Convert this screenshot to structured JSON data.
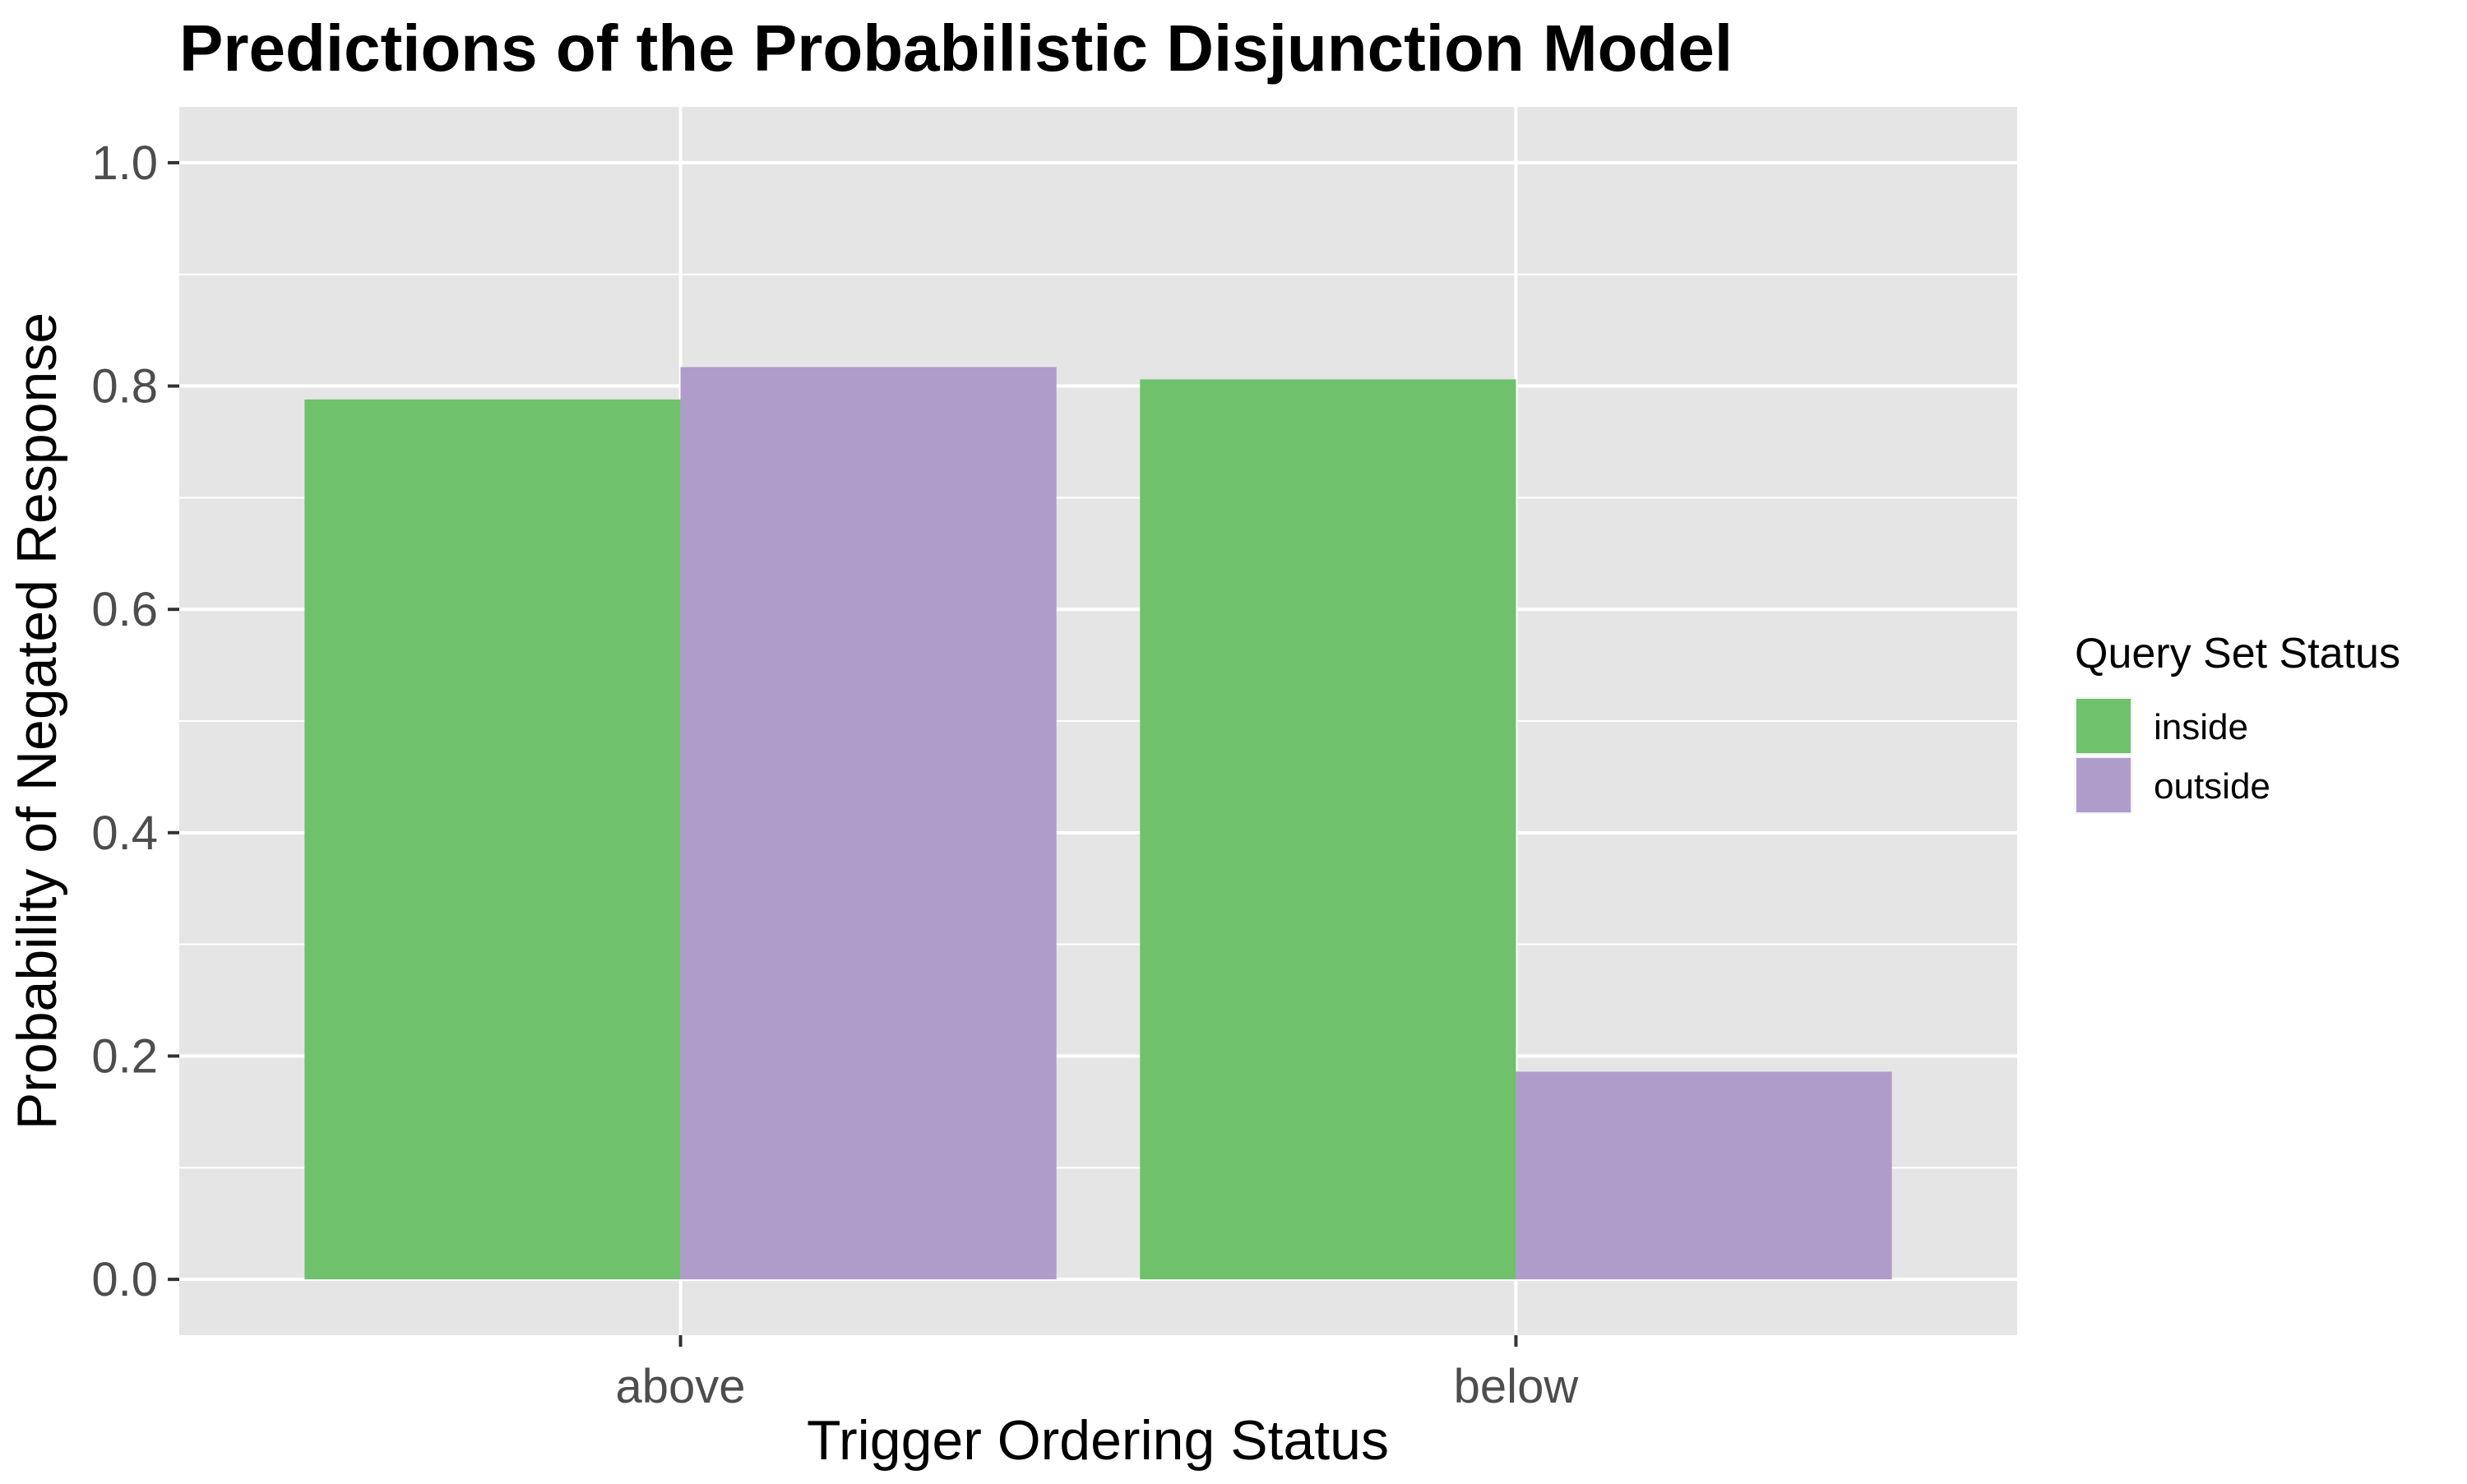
{
  "chart_data": {
    "type": "bar",
    "title": "Predictions of the Probabilistic Disjunction Model",
    "xlabel": "Trigger Ordering Status",
    "ylabel": "Probability of Negated Response",
    "categories": [
      "above",
      "below"
    ],
    "series": [
      {
        "name": "inside",
        "color": "#6fc16c",
        "values": [
          0.788,
          0.806
        ]
      },
      {
        "name": "outside",
        "color": "#af9ccb",
        "values": [
          0.817,
          0.186
        ]
      }
    ],
    "ylim": [
      -0.05,
      1.05
    ],
    "yticks": [
      0.0,
      0.2,
      0.4,
      0.6,
      0.8,
      1.0
    ],
    "ytick_labels": [
      "0.0",
      "0.2",
      "0.4",
      "0.6",
      "0.8",
      "1.0"
    ],
    "grid": true,
    "legend": {
      "title": "Query Set Status",
      "position": "right"
    },
    "colors": {
      "panel_background": "#e5e5e5",
      "gridline": "#ffffff",
      "tick_text": "#4d4d4d"
    }
  }
}
